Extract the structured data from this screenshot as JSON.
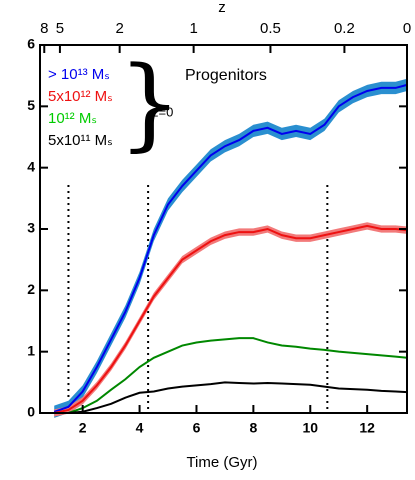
{
  "chart_data": {
    "type": "line",
    "x_label": "Time (Gyr)",
    "x2_label": "z",
    "x": [
      1,
      1.5,
      2,
      2.5,
      3,
      3.5,
      4,
      4.5,
      5,
      5.5,
      6,
      6.5,
      7,
      7.5,
      8,
      8.5,
      9,
      9.5,
      10,
      10.5,
      11,
      11.5,
      12,
      12.5,
      13,
      13.4
    ],
    "series": [
      {
        "name": "> 10¹³ Mₛ",
        "color": "#0000ee",
        "band_color": "#2a8fd0",
        "band": 0.1,
        "values": [
          0.02,
          0.1,
          0.35,
          0.75,
          1.2,
          1.65,
          2.2,
          2.9,
          3.4,
          3.7,
          3.95,
          4.2,
          4.35,
          4.45,
          4.6,
          4.65,
          4.55,
          4.6,
          4.55,
          4.7,
          5.0,
          5.15,
          5.25,
          5.3,
          5.3,
          5.35
        ]
      },
      {
        "name": "5x10¹² Mₛ",
        "color": "#ee1111",
        "band_color": "#f27a7a",
        "band": 0.06,
        "values": [
          0,
          0.05,
          0.2,
          0.45,
          0.75,
          1.1,
          1.5,
          1.9,
          2.2,
          2.5,
          2.65,
          2.8,
          2.9,
          2.95,
          2.95,
          3.0,
          2.9,
          2.85,
          2.85,
          2.9,
          2.95,
          3.0,
          3.05,
          3.0,
          3.0,
          2.98
        ]
      },
      {
        "name": "10¹² Mₛ",
        "color": "#008800",
        "legend_color": "#00cc00",
        "values": [
          0,
          0,
          0.08,
          0.2,
          0.38,
          0.55,
          0.75,
          0.9,
          1.0,
          1.1,
          1.15,
          1.18,
          1.2,
          1.22,
          1.22,
          1.15,
          1.1,
          1.08,
          1.05,
          1.03,
          1.0,
          0.98,
          0.96,
          0.94,
          0.92,
          0.9
        ]
      },
      {
        "name": "5x10¹¹ Mₛ",
        "color": "#000000",
        "values": [
          0,
          0,
          0.02,
          0.08,
          0.15,
          0.25,
          0.33,
          0.35,
          0.4,
          0.43,
          0.45,
          0.47,
          0.5,
          0.49,
          0.48,
          0.49,
          0.48,
          0.47,
          0.46,
          0.43,
          0.4,
          0.39,
          0.38,
          0.36,
          0.35,
          0.34
        ]
      }
    ],
    "xlim": [
      0.5,
      13.4
    ],
    "xticks": [
      2,
      4,
      6,
      8,
      10,
      12
    ],
    "ylim": [
      0,
      6
    ],
    "yticks": [
      0,
      1,
      2,
      3,
      4,
      5,
      6
    ],
    "x2ticks": [
      {
        "value": 0.65,
        "label": "8"
      },
      {
        "value": 1.2,
        "label": "5"
      },
      {
        "value": 3.3,
        "label": "2"
      },
      {
        "value": 5.9,
        "label": "1"
      },
      {
        "value": 8.6,
        "label": "0.5"
      },
      {
        "value": 11.2,
        "label": "0.2"
      },
      {
        "value": 13.4,
        "label": "0"
      }
    ],
    "vlines": [
      1.5,
      4.3,
      10.6
    ],
    "annotations": [
      "Progenitors",
      "z=0"
    ]
  }
}
